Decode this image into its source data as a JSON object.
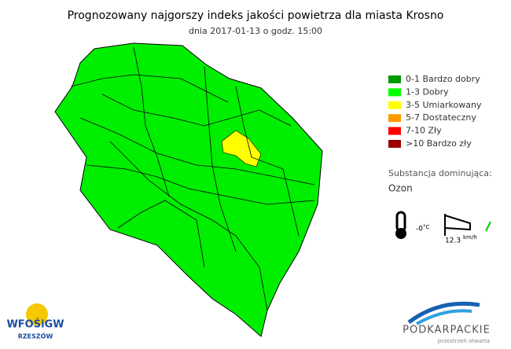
{
  "header": {
    "title": "Prognozowany najgorszy indeks jakości powietrza dla miasta Krosno",
    "subtitle": "dnia 2017-01-13 o godz. 15:00"
  },
  "legend": [
    {
      "label": "0-1 Bardzo dobry",
      "color": "#009900"
    },
    {
      "label": "1-3 Dobry",
      "color": "#00ff00"
    },
    {
      "label": "3-5 Umiarkowany",
      "color": "#ffff00"
    },
    {
      "label": "5-7 Dostateczny",
      "color": "#ff9900"
    },
    {
      "label": "7-10 Zły",
      "color": "#ff0000"
    },
    {
      "label": ">10 Bardzo zły",
      "color": "#990000"
    }
  ],
  "substance": {
    "label": "Substancja dominująca:",
    "value": "Ozon"
  },
  "weather": {
    "temperature": "-0",
    "temperature_unit": "°C",
    "wind": "12.3",
    "wind_unit": "km/h"
  },
  "logos": {
    "left": "WFOŚiGW",
    "left_sub": "RZESZÓW",
    "right": "PODKARPACKIE",
    "right_sub": "przestrzeń otwarta"
  }
}
